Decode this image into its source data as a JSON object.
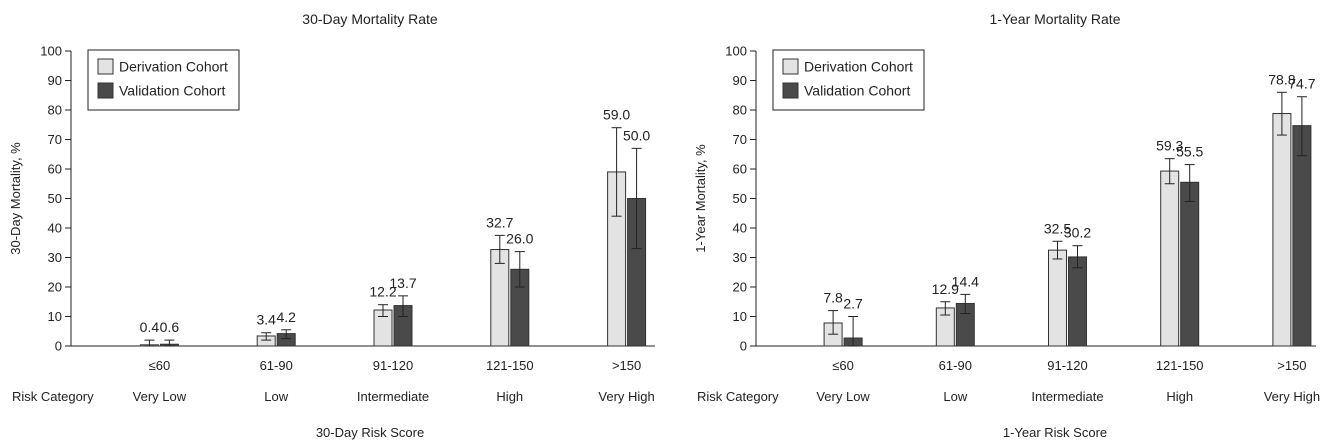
{
  "chart_data": [
    {
      "type": "bar",
      "title": "30-Day Mortality Rate",
      "ylabel": "30-Day Mortality, %",
      "xlabel": "30-Day Risk Score",
      "ylim": [
        0,
        100
      ],
      "yticks": [
        "0",
        "10",
        "20",
        "30",
        "40",
        "50",
        "60",
        "70",
        "80",
        "90",
        "100"
      ],
      "categories": [
        "≤60",
        "61-90",
        "91-120",
        "121-150",
        ">150"
      ],
      "risk_category_label": "Risk Category",
      "risk_categories": [
        "Very Low",
        "Low",
        "Intermediate",
        "High",
        "Very High"
      ],
      "legend_position": "top-left",
      "grid": false,
      "series": [
        {
          "name": "Derivation Cohort",
          "color": "#e3e3e3",
          "values": [
            0.4,
            3.4,
            12.2,
            32.7,
            59.0
          ],
          "labels": [
            "0.4",
            "3.4",
            "12.2",
            "32.7",
            "59.0"
          ],
          "ci_low": [
            0,
            2,
            10,
            28,
            44
          ],
          "ci_high": [
            2,
            4.5,
            14,
            37.5,
            74
          ]
        },
        {
          "name": "Validation Cohort",
          "color": "#4a4a4a",
          "values": [
            0.6,
            4.2,
            13.7,
            26.0,
            50.0
          ],
          "labels": [
            "0.6",
            "4.2",
            "13.7",
            "26.0",
            "50.0"
          ],
          "ci_low": [
            0,
            2.5,
            10,
            20,
            33
          ],
          "ci_high": [
            2,
            5.5,
            17,
            32,
            67
          ]
        }
      ]
    },
    {
      "type": "bar",
      "title": "1-Year Mortality Rate",
      "ylabel": "1-Year Mortality, %",
      "xlabel": "1-Year Risk Score",
      "ylim": [
        0,
        100
      ],
      "yticks": [
        "0",
        "10",
        "20",
        "30",
        "40",
        "50",
        "60",
        "70",
        "80",
        "90",
        "100"
      ],
      "categories": [
        "≤60",
        "61-90",
        "91-120",
        "121-150",
        ">150"
      ],
      "risk_category_label": "Risk Category",
      "risk_categories": [
        "Very Low",
        "Low",
        "Intermediate",
        "High",
        "Very High"
      ],
      "legend_position": "top-left",
      "grid": false,
      "series": [
        {
          "name": "Derivation Cohort",
          "color": "#e3e3e3",
          "values": [
            7.8,
            12.9,
            32.5,
            59.3,
            78.8
          ],
          "labels": [
            "7.8",
            "12.9",
            "32.5",
            "59.3",
            "78.8"
          ],
          "ci_low": [
            4,
            10.5,
            29.5,
            55,
            71.5
          ],
          "ci_high": [
            12,
            15,
            35.5,
            63.5,
            86
          ]
        },
        {
          "name": "Validation Cohort",
          "color": "#4a4a4a",
          "values": [
            2.7,
            14.4,
            30.2,
            55.5,
            74.7
          ],
          "labels": [
            "2.7",
            "14.4",
            "30.2",
            "55.5",
            "74.7"
          ],
          "ci_low": [
            0,
            11,
            26.5,
            49,
            64.5
          ],
          "ci_high": [
            10,
            17.5,
            34,
            61.5,
            84.5
          ]
        }
      ]
    }
  ]
}
